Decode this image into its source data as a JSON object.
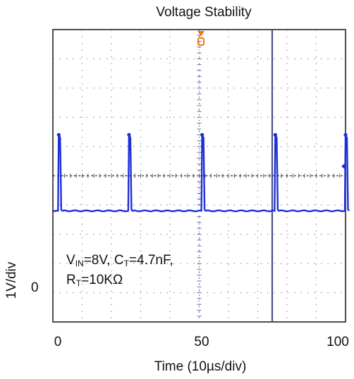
{
  "chart_data": {
    "type": "line",
    "title": "Voltage Stability",
    "xlabel": "Time (10µs/div)",
    "ylabel": "1V/div",
    "xlim": [
      0,
      100
    ],
    "xticks": [
      "0",
      "50",
      "100"
    ],
    "ytick_zero": "0",
    "grid": true,
    "series": [
      {
        "color": "#1f2fd6",
        "baseline_level": 0.38,
        "pulse_level": 0.64,
        "pulse_times": [
          2,
          26,
          51,
          76,
          100
        ]
      }
    ],
    "annotation": {
      "line1": {
        "v": "V",
        "v_sub": "IN",
        "v_rest": "=8V, C",
        "c_sub": "T",
        "c_rest": "=4.7nF,"
      },
      "line2": {
        "r": "R",
        "r_sub": "T",
        "r_rest": "=10KΩ"
      }
    },
    "colors": {
      "trace": "#1f2fd6",
      "cursor": "#4a4f8a",
      "trigger_marker": "#f07a10",
      "grid": "#9a9a9a"
    }
  }
}
